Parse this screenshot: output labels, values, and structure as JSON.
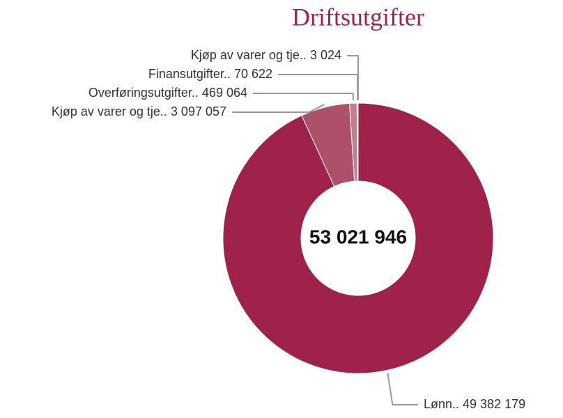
{
  "chart_data": {
    "type": "donut",
    "title": "Driftsutgifter",
    "center_label": "53 021 946",
    "categories": [
      "Lønn..",
      "Kjøp av varer og tje..",
      "Overføringsutgifter..",
      "Finansutgifter..",
      "Kjøp av varer og tje.."
    ],
    "values": [
      49382179,
      3097057,
      469064,
      70622,
      3024
    ],
    "value_labels": [
      "49 382 179",
      "3 097 057",
      "469 064",
      "70 622",
      "3 024"
    ],
    "colors": [
      "#9e2249",
      "#ad5069",
      "#c27f92",
      "#d3a5b2",
      "#e2c4cd"
    ]
  }
}
